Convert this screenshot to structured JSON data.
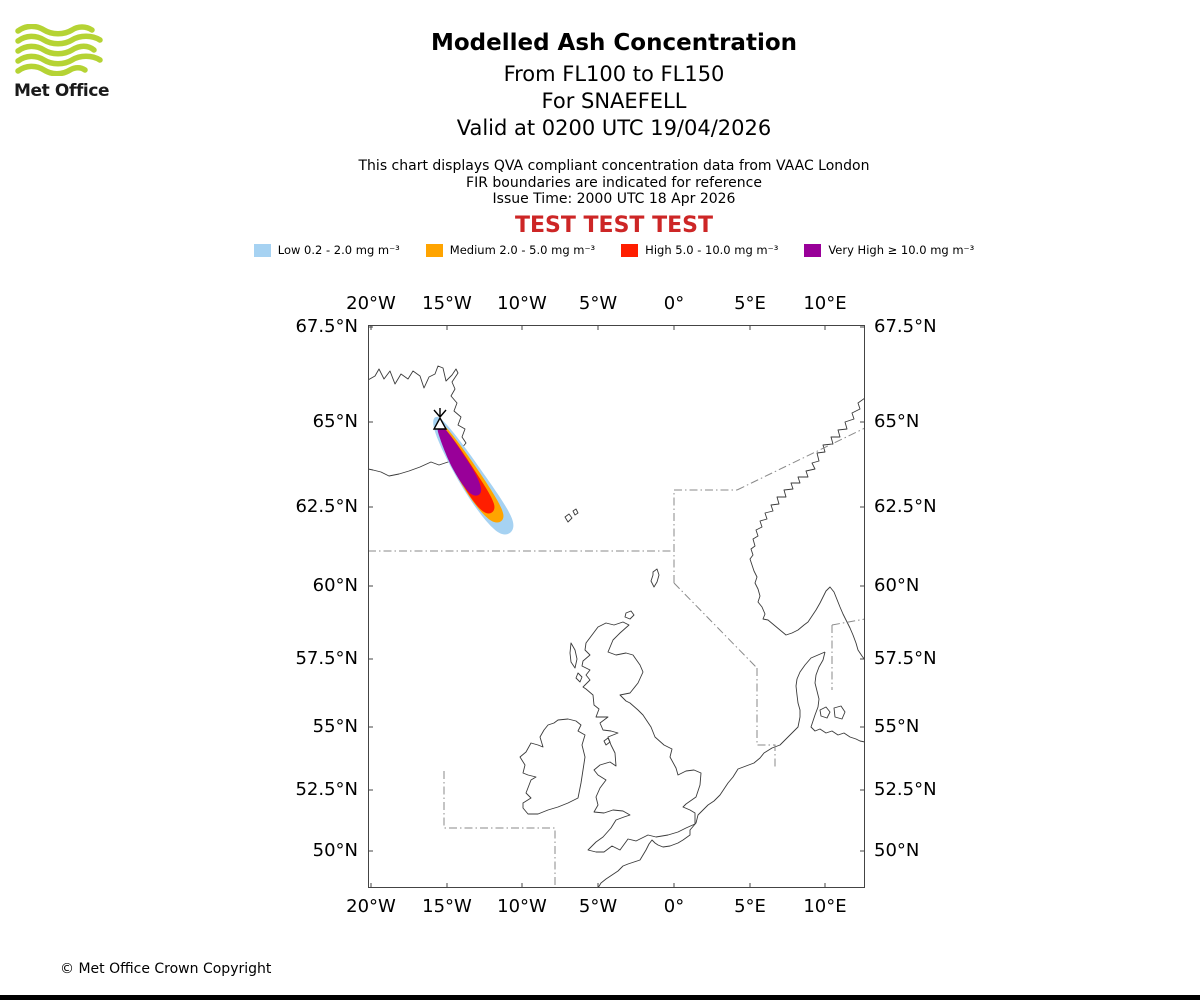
{
  "logo": {
    "text": "Met Office"
  },
  "header": {
    "title": "Modelled Ash Concentration",
    "flight_levels": "From FL100 to FL150",
    "volcano": "For SNAEFELL",
    "valid": "Valid at 0200 UTC 19/04/2026"
  },
  "info": {
    "line1": "This chart displays QVA compliant concentration data from VAAC London",
    "line2": "FIR boundaries are indicated for reference",
    "line3": "Issue Time: 2000 UTC 18 Apr 2026"
  },
  "test_banner": "TEST TEST TEST",
  "colors": {
    "test_text": "#CD2626",
    "logo_green": "#B5D334"
  },
  "legend": {
    "items": [
      {
        "key": "low",
        "label": "Low 0.2 - 2.0 mg m⁻³",
        "color": "#A6D2F2"
      },
      {
        "key": "medium",
        "label": "Medium 2.0 - 5.0 mg m⁻³",
        "color": "#FFA400"
      },
      {
        "key": "high",
        "label": "High 5.0 - 10.0 mg m⁻³",
        "color": "#FF1E00"
      },
      {
        "key": "very_high",
        "label": "Very High ≥ 10.0 mg m⁻³",
        "color": "#990099"
      }
    ]
  },
  "map": {
    "lon_labels": [
      "20°W",
      "15°W",
      "10°W",
      "5°W",
      "0°",
      "5°E",
      "10°E"
    ],
    "lat_labels": [
      "67.5°N",
      "65°N",
      "62.5°N",
      "60°N",
      "57.5°N",
      "55°N",
      "52.5°N",
      "50°N"
    ]
  },
  "footer": {
    "copyright": "© Met Office Crown Copyright"
  }
}
